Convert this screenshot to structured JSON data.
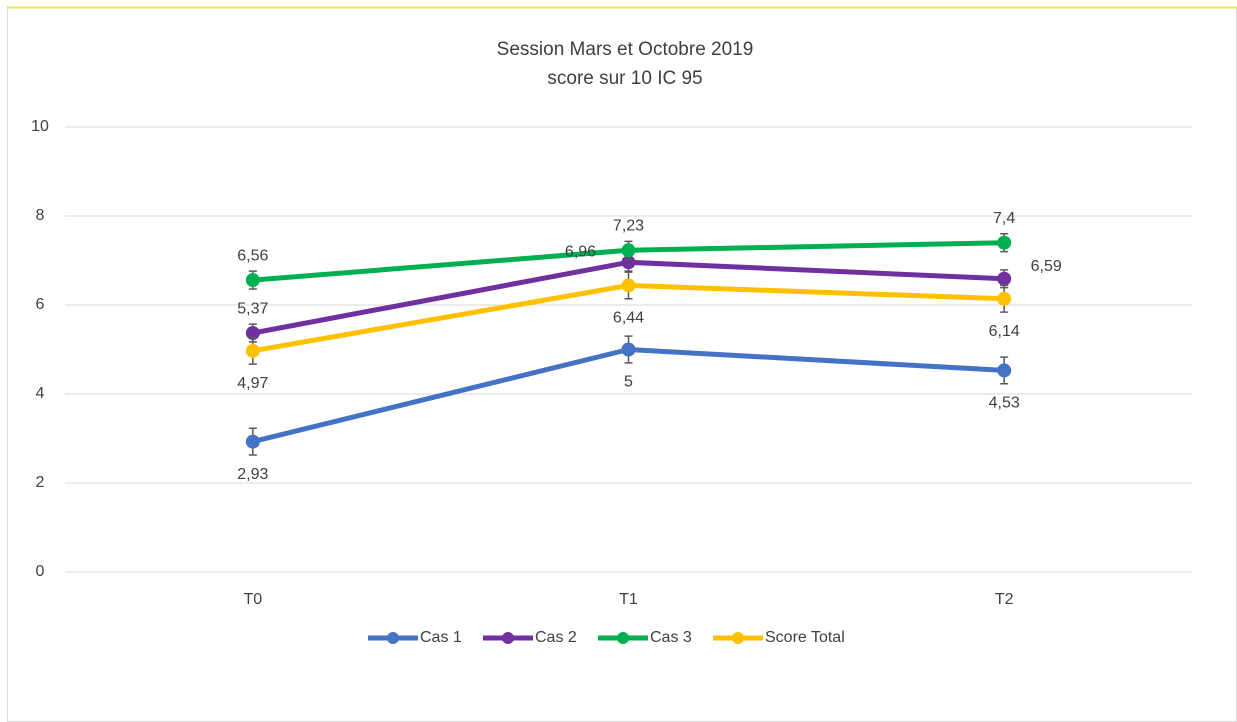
{
  "chart_data": {
    "type": "line",
    "title": "Session Mars et Octobre 2019",
    "subtitle": "score sur 10 IC 95",
    "categories": [
      "T0",
      "T1",
      "T2"
    ],
    "series": [
      {
        "name": "Cas 1",
        "color": "#4472c4",
        "values": [
          2.93,
          5,
          4.53
        ],
        "value_labels": [
          "2,93",
          "5",
          "4,53"
        ],
        "errors": [
          0.3,
          0.3,
          0.3
        ]
      },
      {
        "name": "Cas 2",
        "color": "#7030a0",
        "values": [
          5.37,
          6.96,
          6.59
        ],
        "value_labels": [
          "5,37",
          "6,96",
          "6,59"
        ],
        "errors": [
          0.2,
          0.2,
          0.2
        ]
      },
      {
        "name": "Cas 3",
        "color": "#00b050",
        "values": [
          6.56,
          7.23,
          7.4
        ],
        "value_labels": [
          "6,56",
          "7,23",
          "7,4"
        ],
        "errors": [
          0.2,
          0.2,
          0.2
        ]
      },
      {
        "name": "Score Total",
        "color": "#ffc000",
        "values": [
          4.97,
          6.44,
          6.14
        ],
        "value_labels": [
          "4,97",
          "6,44",
          "6,14"
        ],
        "errors": [
          0.3,
          0.3,
          0.3
        ]
      }
    ],
    "ylim": [
      0,
      10
    ],
    "yticks": [
      0,
      2,
      4,
      6,
      8,
      10
    ],
    "grid": true,
    "legend": "bottom"
  }
}
